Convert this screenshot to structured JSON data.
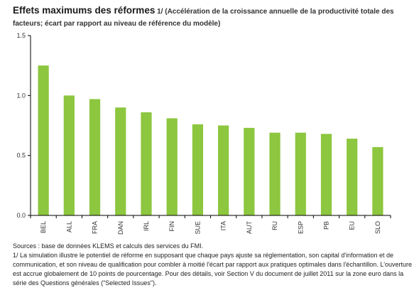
{
  "header": {
    "title": "Effets maximums des réformes",
    "subtitle": " 1/ (Accélération de la croissance annuelle de la productivité totale des facteurs; écart par rapport au niveau de référence du modèle)"
  },
  "chart_data": {
    "type": "bar",
    "categories": [
      "BEL",
      "ALL",
      "FRA",
      "DAN",
      "IRL",
      "FIN",
      "SUE",
      "ITA",
      "AUT",
      "RU",
      "ESP",
      "PB",
      "EU",
      "SLO"
    ],
    "values": [
      1.25,
      1.0,
      0.97,
      0.9,
      0.86,
      0.81,
      0.76,
      0.75,
      0.73,
      0.69,
      0.69,
      0.68,
      0.64,
      0.57
    ],
    "yticks": [
      "0.0",
      "0.5",
      "1.0",
      "1.5"
    ],
    "ylim": [
      0,
      1.5
    ],
    "bar_color": "#8dc63f",
    "grid": false
  },
  "notes": {
    "sources": "Sources : base de données KLEMS et calculs des services du FMI.",
    "footnote": "1/ La simulation illustre le potentiel de réforme en supposant que chaque pays ajuste sa réglementation, son capital d'information et de communication, et son niveau de qualification pour combler à moitié l'écart par rapport aux pratiques optimales dans l'échantillon. L'ouverture est accrue globalement de 10 points de pourcentage. Pour des détails, voir Section V du document de juillet 2011 sur la zone euro dans la série des Questions générales (\"Selected Issues\")."
  }
}
